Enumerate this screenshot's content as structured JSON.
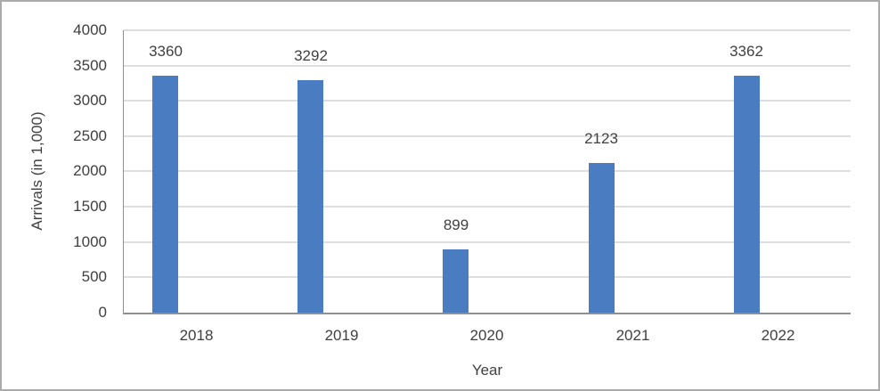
{
  "chart_data": {
    "type": "bar",
    "title": "",
    "categories": [
      "2018",
      "2019",
      "2020",
      "2021",
      "2022"
    ],
    "values": [
      3360,
      3292,
      899,
      2123,
      3362
    ],
    "data_labels": [
      "3360",
      "3292",
      "899",
      "2123",
      "3362"
    ],
    "xlabel": "Year",
    "ylabel": "Arrivals (in 1,000)",
    "ylim": [
      0,
      4000
    ],
    "ytick_step": 500,
    "ytick_labels": [
      "0",
      "500",
      "1000",
      "1500",
      "2000",
      "2500",
      "3000",
      "3500",
      "4000"
    ],
    "grid": true,
    "legend_position": "none",
    "colors": {
      "bar": "#4A7CC2",
      "gridline": "#DEDEDE",
      "axis_line": "#8F8F8F",
      "text": "#404040",
      "frame_border": "#ABABAB"
    }
  }
}
